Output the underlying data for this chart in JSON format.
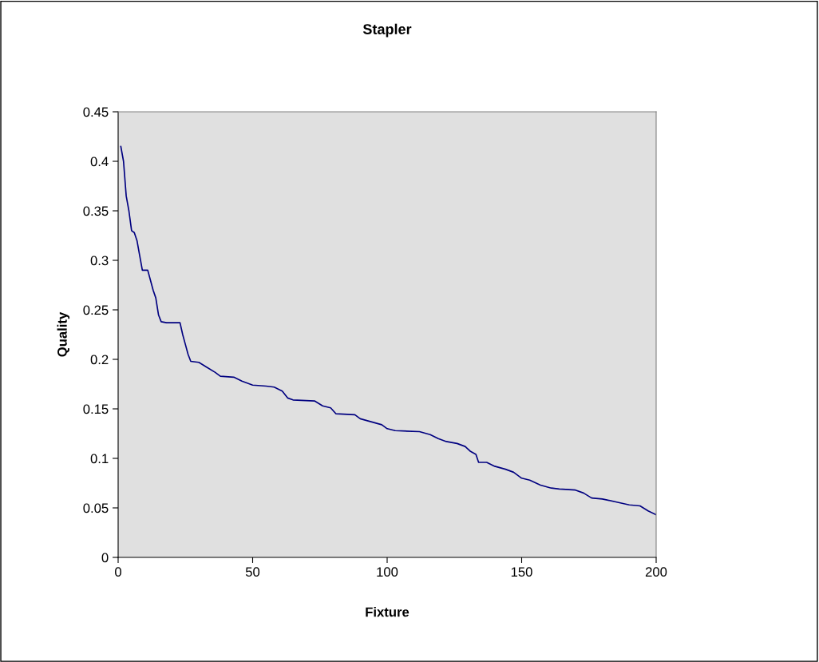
{
  "chart_data": {
    "type": "line",
    "title": "Stapler",
    "xlabel": "Fixture",
    "ylabel": "Quality",
    "x": [
      1,
      2,
      3,
      4,
      5,
      6,
      7,
      8,
      9,
      11,
      12,
      13,
      14,
      15,
      16,
      18,
      23,
      24,
      25,
      26,
      27,
      30,
      33,
      36,
      38,
      43,
      46,
      50,
      55,
      58,
      61,
      63,
      65,
      73,
      76,
      79,
      81,
      88,
      90,
      94,
      98,
      100,
      103,
      112,
      116,
      119,
      122,
      126,
      129,
      131,
      133,
      134,
      137,
      140,
      144,
      147,
      150,
      153,
      157,
      161,
      164,
      170,
      173,
      176,
      180,
      185,
      190,
      194,
      197,
      200
    ],
    "series": [
      {
        "color": "#000080",
        "values": [
          0.415,
          0.4,
          0.365,
          0.35,
          0.33,
          0.328,
          0.32,
          0.305,
          0.29,
          0.29,
          0.28,
          0.27,
          0.262,
          0.245,
          0.238,
          0.237,
          0.237,
          0.225,
          0.215,
          0.205,
          0.198,
          0.197,
          0.192,
          0.187,
          0.183,
          0.182,
          0.178,
          0.174,
          0.173,
          0.172,
          0.168,
          0.161,
          0.159,
          0.158,
          0.153,
          0.151,
          0.145,
          0.144,
          0.14,
          0.137,
          0.134,
          0.13,
          0.128,
          0.127,
          0.124,
          0.12,
          0.117,
          0.115,
          0.112,
          0.107,
          0.104,
          0.096,
          0.096,
          0.092,
          0.089,
          0.086,
          0.08,
          0.078,
          0.073,
          0.07,
          0.069,
          0.068,
          0.065,
          0.06,
          0.059,
          0.056,
          0.053,
          0.052,
          0.047,
          0.043
        ]
      }
    ],
    "xlim": [
      0,
      200
    ],
    "xticks": [
      0,
      50,
      100,
      150,
      200
    ],
    "ylim": [
      0,
      0.45
    ],
    "yticks": [
      {
        "value": 0,
        "label": "0"
      },
      0.05,
      0.1,
      0.15,
      0.2,
      0.25,
      0.3,
      0.35,
      0.4,
      0.45
    ],
    "grid": false,
    "legend": false,
    "marker": "none",
    "line_style": "solid"
  }
}
